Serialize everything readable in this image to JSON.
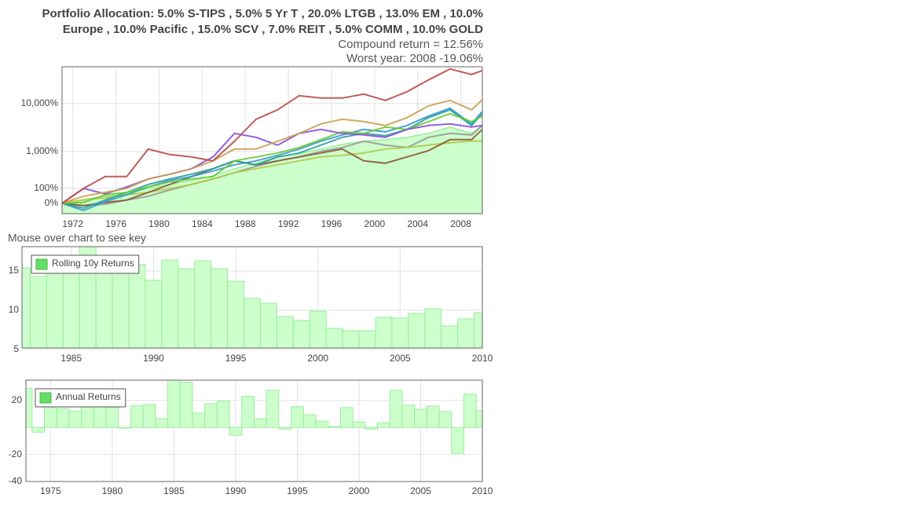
{
  "chart_data": [
    {
      "type": "line",
      "title": [
        "Portfolio Allocation: 5.0% S-TIPS , 5.0% 5 Yr T , 20.0% LTGB , 13.0% EM , 10.0%",
        "Europe , 10.0% Pacific , 15.0% SCV , 7.0% REIT , 5.0% COMM , 10.0% GOLD"
      ],
      "subtitle": [
        "Compound return = 12.56%",
        "Worst year: 2008 -19.06%"
      ],
      "annotation": "Mouse over chart to see key",
      "yscale": "log",
      "grid": true,
      "x": [
        1971,
        1973,
        1975,
        1977,
        1979,
        1981,
        1983,
        1985,
        1987,
        1989,
        1991,
        1993,
        1995,
        1997,
        1999,
        2001,
        2003,
        2005,
        2007,
        2009,
        2010
      ],
      "xlim": [
        1971,
        2010
      ],
      "xticks": [
        1972,
        1976,
        1980,
        1984,
        1988,
        1992,
        1996,
        2000,
        2004,
        2008
      ],
      "ylim": [
        -38,
        55000
      ],
      "yticks": [
        {
          "value": 0,
          "label": "0%"
        },
        {
          "value": 100,
          "label": "100%"
        },
        {
          "value": 1000,
          "label": "1,000%"
        },
        {
          "value": 10000,
          "label": "10,000%"
        }
      ],
      "series": [
        {
          "color": "#99ee99",
          "fill": "#ccffcc",
          "values": [
            0,
            20,
            39,
            60,
            99,
            139,
            187,
            256,
            394,
            537,
            752,
            886,
            1125,
            1424,
            1662,
            1795,
            2013,
            2434,
            3288,
            2434,
            3543
          ]
        },
        {
          "color": "#999999",
          "values": [
            0,
            -10,
            -4,
            16,
            39,
            85,
            139,
            208,
            312,
            451,
            611,
            752,
            999,
            1218,
            1662,
            1369,
            1218,
            2013,
            2434,
            2256,
            3543
          ]
        },
        {
          "color": "#b5c94a",
          "values": [
            0,
            16,
            29,
            49,
            66,
            99,
            139,
            208,
            312,
            394,
            493,
            611,
            752,
            817,
            922,
            1125,
            1218,
            1369,
            1539,
            1662,
            1662
          ]
        },
        {
          "color": "#8b5a3c",
          "values": [
            0,
            -10,
            4,
            16,
            66,
            139,
            244,
            394,
            611,
            493,
            611,
            752,
            922,
            1125,
            611,
            537,
            752,
            1040,
            1795,
            1795,
            2938
          ]
        },
        {
          "color": "#3399cc",
          "values": [
            0,
            -28,
            8,
            49,
            114,
            187,
            244,
            343,
            493,
            611,
            817,
            1125,
            1662,
            2256,
            2938,
            2624,
            3543,
            5535,
            8000,
            3817,
            6905
          ]
        },
        {
          "color": "#2aa0a0",
          "values": [
            0,
            -20,
            16,
            66,
            139,
            208,
            283,
            394,
            611,
            493,
            752,
            922,
            1369,
            2013,
            2434,
            2172,
            2938,
            5139,
            7433,
            3543,
            6182
          ]
        },
        {
          "color": "#66cc33",
          "values": [
            0,
            4,
            49,
            66,
            114,
            167,
            208,
            244,
            611,
            752,
            922,
            1218,
            1795,
            2624,
            2434,
            3288,
            2938,
            4268,
            6182,
            4268,
            5535
          ]
        },
        {
          "color": "#8a4fd8",
          "values": [
            0,
            99,
            55,
            114,
            208,
            283,
            394,
            752,
            2434,
            2013,
            1369,
            2434,
            2938,
            2434,
            2256,
            2013,
            2938,
            3543,
            3817,
            3288,
            3543
          ]
        },
        {
          "color": "#c8a050",
          "values": [
            0,
            39,
            66,
            99,
            208,
            283,
            394,
            611,
            1125,
            1125,
            1662,
            2434,
            3817,
            4771,
            4268,
            3543,
            5139,
            8933,
            11550,
            7433,
            11980
          ]
        },
        {
          "color": "#b94a48",
          "values": [
            0,
            99,
            244,
            244,
            1125,
            850,
            752,
            611,
            1662,
            4771,
            7433,
            14380,
            12890,
            12890,
            15470,
            11550,
            17260,
            29850,
            49700,
            38500,
            46260
          ]
        }
      ]
    },
    {
      "type": "bar",
      "grid": true,
      "legend": "upper left",
      "x": [
        1982,
        1983,
        1984,
        1985,
        1986,
        1987,
        1988,
        1989,
        1990,
        1991,
        1992,
        1993,
        1994,
        1995,
        1996,
        1997,
        1998,
        1999,
        2000,
        2001,
        2002,
        2003,
        2004,
        2005,
        2006,
        2007,
        2008,
        2009,
        2010
      ],
      "xlim": [
        1982,
        2010
      ],
      "xticks": [
        1985,
        1990,
        1995,
        2000,
        2005,
        2010
      ],
      "ylim": [
        5.2,
        18.1
      ],
      "yticks": [
        5,
        10,
        15
      ],
      "series": [
        {
          "name": "Rolling 10y Returns",
          "color": "#ccffcc",
          "values": [
            15.4,
            14.3,
            15.0,
            16.2,
            18.2,
            16.8,
            16.5,
            15.8,
            13.8,
            16.4,
            15.3,
            16.3,
            15.3,
            13.7,
            11.5,
            10.9,
            9.2,
            8.7,
            9.9,
            7.7,
            7.4,
            7.4,
            9.1,
            9.0,
            9.6,
            10.2,
            8.0,
            8.9,
            9.7
          ]
        }
      ]
    },
    {
      "type": "bar",
      "grid": true,
      "legend": "upper left",
      "x": [
        1973,
        1974,
        1975,
        1976,
        1977,
        1978,
        1979,
        1980,
        1981,
        1982,
        1983,
        1984,
        1985,
        1986,
        1987,
        1988,
        1989,
        1990,
        1991,
        1992,
        1993,
        1994,
        1995,
        1996,
        1997,
        1998,
        1999,
        2000,
        2001,
        2002,
        2003,
        2004,
        2005,
        2006,
        2007,
        2008,
        2009,
        2010
      ],
      "xlim": [
        1973,
        2010
      ],
      "xticks": [
        1975,
        1980,
        1985,
        1990,
        1995,
        2000,
        2005,
        2010
      ],
      "ylim": [
        -40,
        35
      ],
      "yticks": [
        -40,
        -20,
        20
      ],
      "series": [
        {
          "name": "Annual Returns",
          "color": "#ccffcc",
          "values": [
            29,
            -3.5,
            18,
            14,
            12,
            16,
            20,
            15,
            -0.5,
            16,
            17,
            6.5,
            35,
            33.5,
            10.6,
            17.6,
            19.4,
            -5.9,
            23,
            6.5,
            27.6,
            -1.2,
            15.3,
            9.4,
            4.7,
            0.6,
            14.7,
            4.1,
            -1.2,
            3.5,
            27.6,
            16.5,
            13.5,
            15.9,
            11.8,
            -19.06,
            24.7,
            12.4
          ]
        }
      ]
    }
  ]
}
